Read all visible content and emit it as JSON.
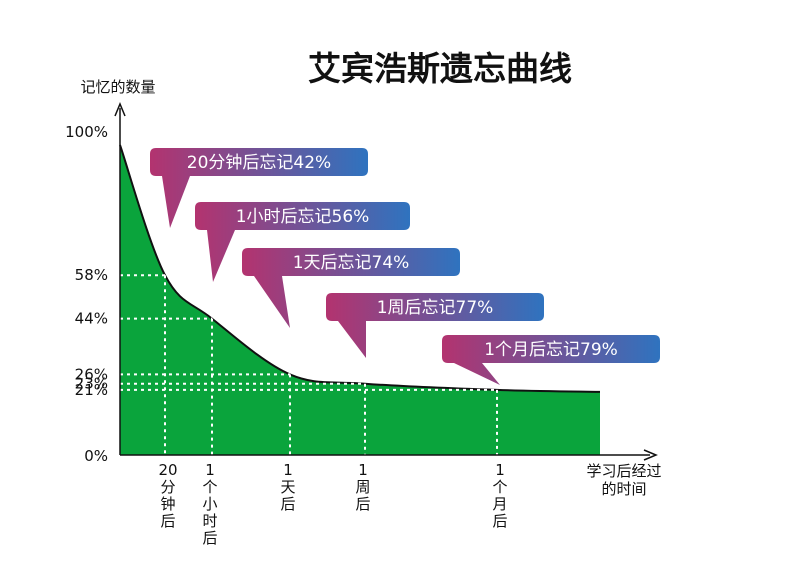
{
  "chart_data": {
    "type": "area",
    "title": "艾宾浩斯遗忘曲线",
    "ylabel": "记忆的数量",
    "xlabel": "学习后经过的时间",
    "ylim": [
      0,
      100
    ],
    "yticks": [
      {
        "value": 100,
        "label": "100%"
      },
      {
        "value": 58,
        "label": "58%"
      },
      {
        "value": 44,
        "label": "44%"
      },
      {
        "value": 26,
        "label": "26%"
      },
      {
        "value": 23,
        "label": "23%"
      },
      {
        "value": 21,
        "label": "21%"
      },
      {
        "value": 0,
        "label": "0%"
      }
    ],
    "points": [
      {
        "label": "20分钟后",
        "retention": 58
      },
      {
        "label": "1个小时后",
        "retention": 44
      },
      {
        "label": "1天后",
        "retention": 26
      },
      {
        "label": "1周后",
        "retention": 23
      },
      {
        "label": "1个月后",
        "retention": 21
      }
    ],
    "annotations": [
      "20分钟后忘记42%",
      "1小时后忘记56%",
      "1天后忘记74%",
      "1周后忘记77%",
      "1个月后忘记79%"
    ],
    "colors": {
      "area": "#0aa43c",
      "bubble_start": "#b3336f",
      "bubble_end": "#2f73bf",
      "guide": "#ffffff"
    }
  }
}
